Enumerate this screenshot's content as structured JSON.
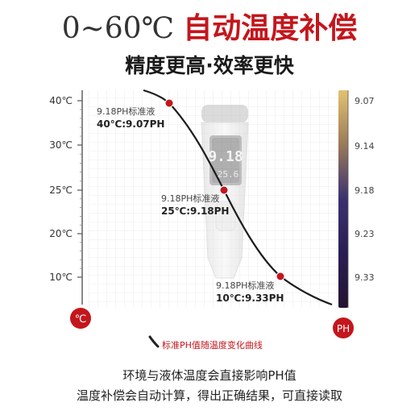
{
  "header": {
    "temp_range": "0~60℃",
    "title_red": "自动温度补偿",
    "subtitle": "精度更高·效率更快"
  },
  "chart_data": {
    "type": "line",
    "title": "",
    "y_ticks": [
      "40℃",
      "30℃",
      "25℃",
      "20℃",
      "10℃"
    ],
    "y_unit_badge": "℃",
    "ph_badge": "PH",
    "color_scale": {
      "ticks": [
        "9.07",
        "9.14",
        "9.18",
        "9.23",
        "9.33"
      ],
      "colors": [
        "#e4c271",
        "#9a7a5a",
        "#3a3170",
        "#2a1d55",
        "#241530"
      ]
    },
    "series": [
      {
        "points": [
          {
            "temp": 40,
            "ph": 9.07,
            "label_line1": "9.18PH标准液",
            "label_line2": "40℃:9.07PH"
          },
          {
            "temp": 25,
            "ph": 9.18,
            "label_line1": "9.18PH标准液",
            "label_line2": "25℃:9.18PH"
          },
          {
            "temp": 10,
            "ph": 9.33,
            "label_line1": "9.18PH标准液",
            "label_line2": "10℃:9.33PH"
          }
        ]
      }
    ],
    "meter_display": {
      "reading": "9.18",
      "temp": "25.6"
    },
    "legend_caption": "标准PH值随温度变化曲线",
    "marker_color": "#c4161c"
  },
  "footer": {
    "line1": "环境与液体温度会直接影响PH值",
    "line2": "温度补偿会自动计算，得出正确结果，可直接读取"
  }
}
